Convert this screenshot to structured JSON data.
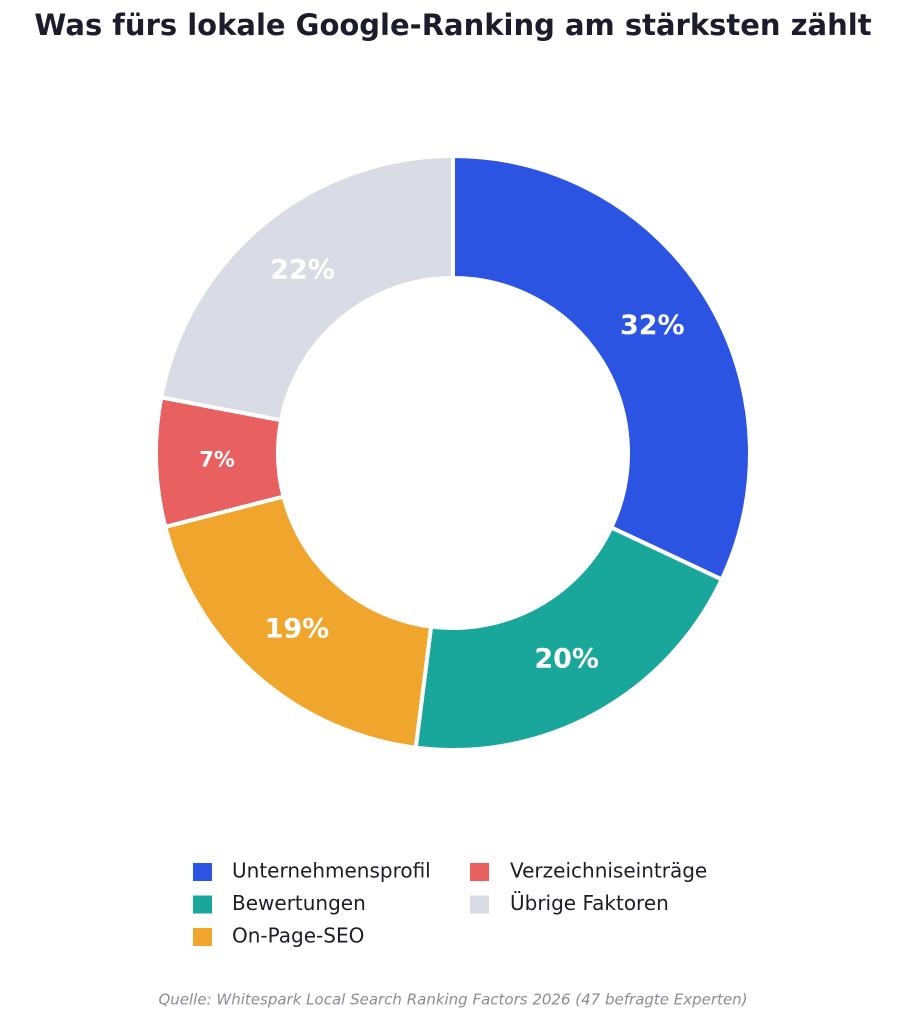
{
  "chart_data": {
    "type": "pie",
    "title": "Was fürs lokale Google-Ranking am stärksten zählt",
    "categories": [
      "Unternehmensprofil",
      "Bewertungen",
      "On-Page-SEO",
      "Verzeichniseinträge",
      "Übrige Faktoren"
    ],
    "values": [
      32,
      20,
      19,
      7,
      22
    ],
    "value_labels": [
      "32%",
      "20%",
      "19%",
      "7%",
      "22%"
    ],
    "colors": [
      "#2c54e3",
      "#19a69b",
      "#f0a62d",
      "#e86060",
      "#d9dbe5"
    ],
    "source": "Quelle: Whitespark Local Search Ranking Factors 2026 (47 befragte Experten)"
  }
}
